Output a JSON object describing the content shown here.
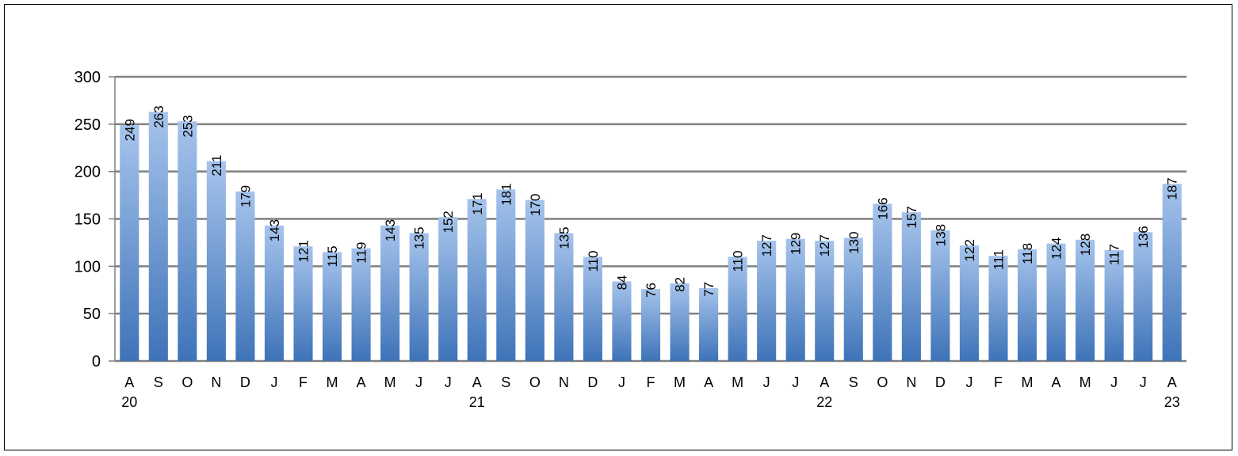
{
  "chart_data": {
    "type": "bar",
    "categories": [
      "A",
      "S",
      "O",
      "N",
      "D",
      "J",
      "F",
      "M",
      "A",
      "M",
      "J",
      "J",
      "A",
      "S",
      "O",
      "N",
      "D",
      "J",
      "F",
      "M",
      "A",
      "M",
      "J",
      "J",
      "A",
      "S",
      "O",
      "N",
      "D",
      "J",
      "F",
      "M",
      "A",
      "M",
      "J",
      "J",
      "A"
    ],
    "year_labels": [
      {
        "index": 0,
        "label": "20"
      },
      {
        "index": 12,
        "label": "21"
      },
      {
        "index": 24,
        "label": "22"
      },
      {
        "index": 36,
        "label": "23"
      }
    ],
    "values": [
      249,
      263,
      253,
      211,
      179,
      143,
      121,
      115,
      119,
      143,
      135,
      152,
      171,
      181,
      170,
      135,
      110,
      84,
      76,
      82,
      77,
      110,
      127,
      129,
      127,
      130,
      166,
      157,
      138,
      122,
      111,
      118,
      124,
      128,
      117,
      136,
      187
    ],
    "ylim": [
      0,
      300
    ],
    "yticks": [
      0,
      50,
      100,
      150,
      200,
      250,
      300
    ],
    "grid": true,
    "colors": {
      "bar_top": "#A6C4EC",
      "bar_bottom": "#3E73B8",
      "grid": "#808080"
    }
  }
}
